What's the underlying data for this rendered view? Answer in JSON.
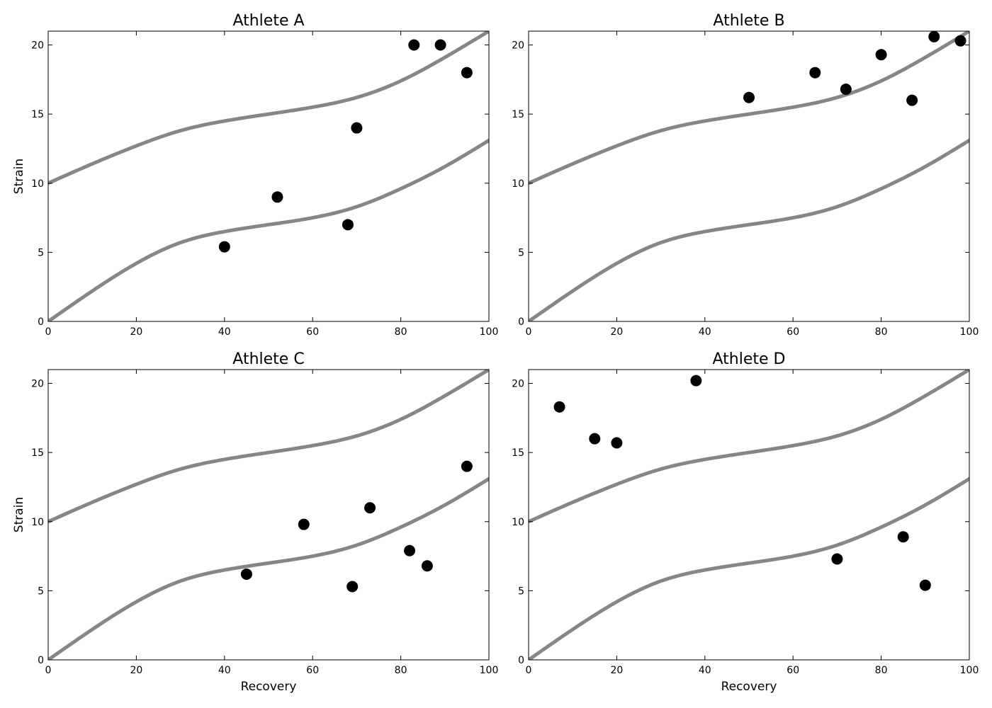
{
  "chart_data": [
    {
      "type": "scatter",
      "title": "Athlete A",
      "xlabel": "",
      "ylabel": "Strain",
      "xlim": [
        0,
        100
      ],
      "ylim": [
        0,
        21
      ],
      "xticks": [
        "0",
        "20",
        "40",
        "60",
        "80",
        "100"
      ],
      "yticks": [
        "0",
        "5",
        "10",
        "15",
        "20"
      ],
      "grid": false,
      "points": [
        {
          "x": 40,
          "y": 5.4
        },
        {
          "x": 52,
          "y": 9
        },
        {
          "x": 68,
          "y": 7
        },
        {
          "x": 70,
          "y": 14
        },
        {
          "x": 83,
          "y": 20
        },
        {
          "x": 89,
          "y": 20
        },
        {
          "x": 95,
          "y": 18
        }
      ],
      "bands": [
        {
          "x": [
            0,
            10,
            20,
            30,
            40,
            50,
            60,
            70,
            80,
            90,
            100
          ],
          "y": [
            10.0,
            11.4,
            12.7,
            13.8,
            14.5,
            15.0,
            15.5,
            16.2,
            17.4,
            19.1,
            21.0
          ]
        },
        {
          "x": [
            0,
            10,
            20,
            30,
            40,
            50,
            60,
            70,
            80,
            90,
            100
          ],
          "y": [
            0.0,
            2.2,
            4.2,
            5.7,
            6.5,
            7.0,
            7.5,
            8.3,
            9.6,
            11.2,
            13.1
          ]
        }
      ]
    },
    {
      "type": "scatter",
      "title": "Athlete B",
      "xlabel": "",
      "ylabel": "",
      "xlim": [
        0,
        100
      ],
      "ylim": [
        0,
        21
      ],
      "xticks": [
        "0",
        "20",
        "40",
        "60",
        "80",
        "100"
      ],
      "yticks": [
        "0",
        "5",
        "10",
        "15",
        "20"
      ],
      "grid": false,
      "points": [
        {
          "x": 50,
          "y": 16.2
        },
        {
          "x": 65,
          "y": 18
        },
        {
          "x": 72,
          "y": 16.8
        },
        {
          "x": 80,
          "y": 19.3
        },
        {
          "x": 87,
          "y": 16
        },
        {
          "x": 92,
          "y": 20.6
        },
        {
          "x": 98,
          "y": 20.3
        }
      ],
      "bands": [
        {
          "x": [
            0,
            10,
            20,
            30,
            40,
            50,
            60,
            70,
            80,
            90,
            100
          ],
          "y": [
            10.0,
            11.4,
            12.7,
            13.8,
            14.5,
            15.0,
            15.5,
            16.2,
            17.4,
            19.1,
            21.0
          ]
        },
        {
          "x": [
            0,
            10,
            20,
            30,
            40,
            50,
            60,
            70,
            80,
            90,
            100
          ],
          "y": [
            0.0,
            2.2,
            4.2,
            5.7,
            6.5,
            7.0,
            7.5,
            8.3,
            9.6,
            11.2,
            13.1
          ]
        }
      ]
    },
    {
      "type": "scatter",
      "title": "Athlete C",
      "xlabel": "Recovery",
      "ylabel": "Strain",
      "xlim": [
        0,
        100
      ],
      "ylim": [
        0,
        21
      ],
      "xticks": [
        "0",
        "20",
        "40",
        "60",
        "80",
        "100"
      ],
      "yticks": [
        "0",
        "5",
        "10",
        "15",
        "20"
      ],
      "grid": false,
      "points": [
        {
          "x": 45,
          "y": 6.2
        },
        {
          "x": 58,
          "y": 9.8
        },
        {
          "x": 69,
          "y": 5.3
        },
        {
          "x": 73,
          "y": 11
        },
        {
          "x": 82,
          "y": 7.9
        },
        {
          "x": 86,
          "y": 6.8
        },
        {
          "x": 95,
          "y": 14
        }
      ],
      "bands": [
        {
          "x": [
            0,
            10,
            20,
            30,
            40,
            50,
            60,
            70,
            80,
            90,
            100
          ],
          "y": [
            10.0,
            11.4,
            12.7,
            13.8,
            14.5,
            15.0,
            15.5,
            16.2,
            17.4,
            19.1,
            21.0
          ]
        },
        {
          "x": [
            0,
            10,
            20,
            30,
            40,
            50,
            60,
            70,
            80,
            90,
            100
          ],
          "y": [
            0.0,
            2.2,
            4.2,
            5.7,
            6.5,
            7.0,
            7.5,
            8.3,
            9.6,
            11.2,
            13.1
          ]
        }
      ]
    },
    {
      "type": "scatter",
      "title": "Athlete D",
      "xlabel": "Recovery",
      "ylabel": "",
      "xlim": [
        0,
        100
      ],
      "ylim": [
        0,
        21
      ],
      "xticks": [
        "0",
        "20",
        "40",
        "60",
        "80",
        "100"
      ],
      "yticks": [
        "0",
        "5",
        "10",
        "15",
        "20"
      ],
      "grid": false,
      "points": [
        {
          "x": 7,
          "y": 18.3
        },
        {
          "x": 15,
          "y": 16
        },
        {
          "x": 20,
          "y": 15.7
        },
        {
          "x": 38,
          "y": 20.2
        },
        {
          "x": 70,
          "y": 7.3
        },
        {
          "x": 85,
          "y": 8.9
        },
        {
          "x": 90,
          "y": 5.4
        }
      ],
      "bands": [
        {
          "x": [
            0,
            10,
            20,
            30,
            40,
            50,
            60,
            70,
            80,
            90,
            100
          ],
          "y": [
            10.0,
            11.4,
            12.7,
            13.8,
            14.5,
            15.0,
            15.5,
            16.2,
            17.4,
            19.1,
            21.0
          ]
        },
        {
          "x": [
            0,
            10,
            20,
            30,
            40,
            50,
            60,
            70,
            80,
            90,
            100
          ],
          "y": [
            0.0,
            2.2,
            4.2,
            5.7,
            6.5,
            7.0,
            7.5,
            8.3,
            9.6,
            11.2,
            13.1
          ]
        }
      ]
    }
  ]
}
